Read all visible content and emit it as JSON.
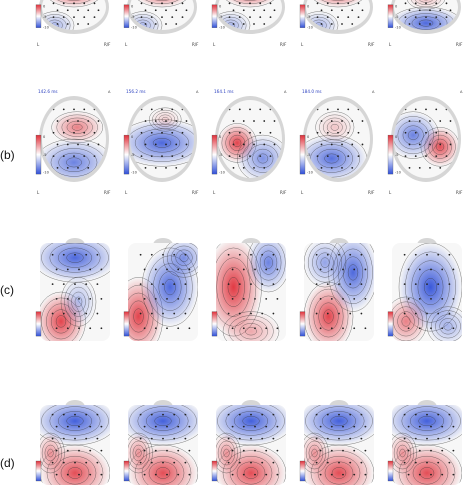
{
  "figure": {
    "row_labels": [
      "(b)",
      "(c)",
      "(d)"
    ],
    "colors": {
      "positive": "#e0303a",
      "negative": "#3050d8",
      "neutral": "#f7f7f7",
      "head": "#d6d6d6"
    },
    "rows": [
      {
        "id": "row-a",
        "cut_off": true,
        "panels": [
          {
            "scale_ticks": [
              "0",
              "-5",
              "-10"
            ],
            "corner_left": "L",
            "corner_right": "R/F",
            "pattern": "top-red"
          },
          {
            "scale_ticks": [
              "0",
              "-5",
              "-10"
            ],
            "corner_left": "L",
            "corner_right": "R/F",
            "pattern": "top-red"
          },
          {
            "scale_ticks": [
              "0",
              "-5",
              "-10"
            ],
            "corner_left": "L",
            "corner_right": "R/F",
            "pattern": "top-red"
          },
          {
            "scale_ticks": [
              "0",
              "-5",
              "-10"
            ],
            "corner_left": "L",
            "corner_right": "R/F",
            "pattern": "top-red"
          },
          {
            "scale_ticks": [
              "0",
              "-5",
              "-10"
            ],
            "corner_left": "L",
            "corner_right": "R/F",
            "pattern": "bottom-blue"
          }
        ]
      },
      {
        "id": "row-b",
        "panels": [
          {
            "time": "142.6 ms",
            "corner_mark": "A",
            "scale_ticks": [
              "0",
              "-5",
              "-10"
            ],
            "corner_left": "L",
            "corner_right": "R/F",
            "pattern": "center-red"
          },
          {
            "time": "156.2 ms",
            "corner_mark": "A",
            "scale_ticks": [
              "0",
              "-5",
              "-10"
            ],
            "corner_left": "L",
            "corner_right": "R/F",
            "pattern": "blue-band"
          },
          {
            "time": "164.1 ms",
            "corner_mark": "A",
            "scale_ticks": [
              "0",
              "-5",
              "-10"
            ],
            "corner_left": "L",
            "corner_right": "R/F",
            "pattern": "left-red"
          },
          {
            "time": "184.0 ms",
            "corner_mark": "A",
            "scale_ticks": [
              "0",
              "-5",
              "-10"
            ],
            "corner_left": "L",
            "corner_right": "R/F",
            "pattern": "blue-lower"
          },
          {
            "time": "",
            "corner_mark": "A",
            "scale_ticks": [
              "0",
              "-5",
              "-10"
            ],
            "corner_left": "L",
            "corner_right": "R/F",
            "pattern": "right-red"
          }
        ]
      },
      {
        "id": "row-c",
        "panels": [
          {
            "pattern": "c1"
          },
          {
            "pattern": "c2"
          },
          {
            "pattern": "c3"
          },
          {
            "pattern": "c4"
          },
          {
            "pattern": "c5"
          }
        ]
      },
      {
        "id": "row-d",
        "cut_off": true,
        "panels": [
          {
            "pattern": "d"
          },
          {
            "pattern": "d"
          },
          {
            "pattern": "d"
          },
          {
            "pattern": "d"
          },
          {
            "pattern": "d"
          }
        ]
      }
    ]
  }
}
